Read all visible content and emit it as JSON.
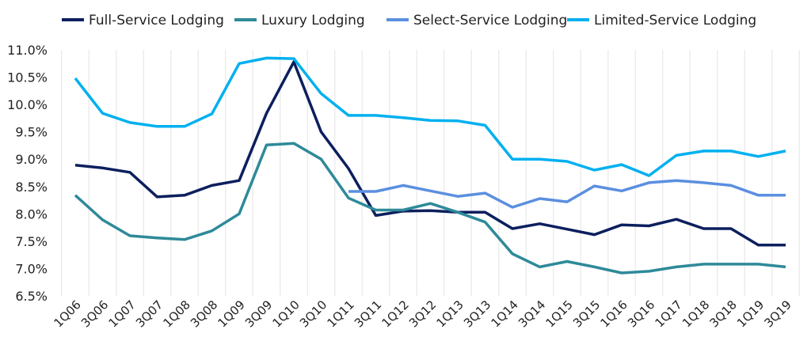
{
  "chart_data": {
    "type": "line",
    "title": "",
    "xlabel": "",
    "ylabel": "",
    "ylim": [
      6.5,
      11.0
    ],
    "ytick_step": 0.5,
    "y_format": "percent_1dp",
    "grid": "vertical",
    "legend_position": "top",
    "categories": [
      "1Q06",
      "3Q06",
      "1Q07",
      "3Q07",
      "1Q08",
      "3Q08",
      "1Q09",
      "3Q09",
      "1Q10",
      "3Q10",
      "1Q11",
      "3Q11",
      "1Q12",
      "3Q12",
      "1Q13",
      "3Q13",
      "1Q14",
      "3Q14",
      "1Q15",
      "3Q15",
      "1Q16",
      "3Q16",
      "1Q17",
      "1Q18",
      "3Q18",
      "1Q19",
      "3Q19"
    ],
    "series": [
      {
        "name": "Full-Service Lodging",
        "color": "#0c1f5e",
        "values": [
          8.89,
          8.84,
          8.76,
          8.31,
          8.34,
          8.52,
          8.61,
          9.84,
          10.78,
          9.5,
          8.83,
          7.97,
          8.05,
          8.06,
          8.03,
          8.03,
          7.73,
          7.82,
          7.72,
          7.62,
          7.8,
          7.78,
          7.9,
          7.73,
          7.73,
          7.43,
          7.43
        ]
      },
      {
        "name": "Luxury Lodging",
        "color": "#2e8a99",
        "values": [
          8.34,
          7.89,
          7.6,
          7.56,
          7.53,
          7.69,
          8.0,
          9.26,
          9.29,
          9.0,
          8.29,
          8.07,
          8.07,
          8.19,
          8.03,
          7.85,
          7.27,
          7.03,
          7.13,
          7.03,
          6.92,
          6.95,
          7.03,
          7.08,
          7.08,
          7.08,
          7.03
        ]
      },
      {
        "name": "Select-Service Lodging",
        "color": "#5b8fe0",
        "values": [
          null,
          null,
          null,
          null,
          null,
          null,
          null,
          null,
          null,
          null,
          8.41,
          8.41,
          8.52,
          8.42,
          8.32,
          8.38,
          8.12,
          8.28,
          8.22,
          8.51,
          8.42,
          8.57,
          8.61,
          8.57,
          8.52,
          8.34,
          8.34
        ]
      },
      {
        "name": "Limited-Service Lodging",
        "color": "#00b0f0",
        "values": [
          10.48,
          9.84,
          9.67,
          9.6,
          9.6,
          9.83,
          10.75,
          10.85,
          10.84,
          10.2,
          9.8,
          9.8,
          9.76,
          9.71,
          9.7,
          9.62,
          9.0,
          9.0,
          8.96,
          8.8,
          8.9,
          8.7,
          9.07,
          9.15,
          9.15,
          9.05,
          9.15
        ]
      }
    ]
  }
}
